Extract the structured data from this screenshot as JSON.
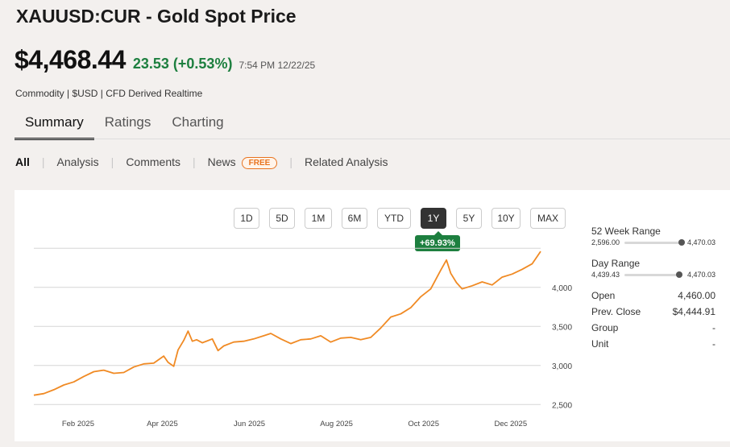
{
  "header": {
    "title": "XAUUSD:CUR - Gold Spot Price",
    "price": "$4,468.44",
    "change": "23.53 (+0.53%)",
    "timestamp": "7:54 PM 12/22/25",
    "meta": "Commodity | $USD | CFD Derived Realtime"
  },
  "tabs": [
    "Summary",
    "Ratings",
    "Charting"
  ],
  "subnav": {
    "all": "All",
    "analysis": "Analysis",
    "comments": "Comments",
    "news": "News",
    "news_badge": "FREE",
    "related": "Related Analysis"
  },
  "range_buttons": [
    "1D",
    "5D",
    "1M",
    "6M",
    "YTD",
    "1Y",
    "5Y",
    "10Y",
    "MAX"
  ],
  "active_range": "1Y",
  "performance": "+69.93%",
  "colors": {
    "line": "#f08a24",
    "positive": "#1d7f3f"
  },
  "side": {
    "week52_label": "52 Week Range",
    "week52_low": "2,596.00",
    "week52_high": "4,470.03",
    "day_label": "Day Range",
    "day_low": "4,439.43",
    "day_high": "4,470.03",
    "open_label": "Open",
    "open_value": "4,460.00",
    "prev_label": "Prev. Close",
    "prev_value": "$4,444.91",
    "group_label": "Group",
    "group_value": "-",
    "unit_label": "Unit",
    "unit_value": "-"
  },
  "chart_data": {
    "type": "line",
    "y_ticks": [
      "4,000",
      "3,500",
      "3,000",
      "2,500"
    ],
    "x_ticks": [
      "Feb 2025",
      "Apr 2025",
      "Jun 2025",
      "Aug 2025",
      "Oct 2025",
      "Dec 2025"
    ],
    "ylim": [
      2400,
      4420
    ],
    "grid": true,
    "series": [
      {
        "x": [
          "2025-01-01",
          "2025-01-08",
          "2025-01-15",
          "2025-01-22",
          "2025-01-29",
          "2025-02-05",
          "2025-02-12",
          "2025-02-19",
          "2025-02-26",
          "2025-03-05",
          "2025-03-12",
          "2025-03-19",
          "2025-03-26",
          "2025-04-02",
          "2025-04-05",
          "2025-04-09",
          "2025-04-12",
          "2025-04-16",
          "2025-04-19",
          "2025-04-22",
          "2025-04-25",
          "2025-04-29",
          "2025-05-06",
          "2025-05-10",
          "2025-05-14",
          "2025-05-21",
          "2025-05-28",
          "2025-06-04",
          "2025-06-11",
          "2025-06-16",
          "2025-06-23",
          "2025-06-30",
          "2025-07-07",
          "2025-07-14",
          "2025-07-21",
          "2025-07-28",
          "2025-08-04",
          "2025-08-11",
          "2025-08-18",
          "2025-08-25",
          "2025-09-01",
          "2025-09-08",
          "2025-09-15",
          "2025-09-22",
          "2025-09-29",
          "2025-10-06",
          "2025-10-13",
          "2025-10-17",
          "2025-10-20",
          "2025-10-24",
          "2025-10-28",
          "2025-11-04",
          "2025-11-11",
          "2025-11-18",
          "2025-11-25",
          "2025-12-02",
          "2025-12-09",
          "2025-12-16",
          "2025-12-22"
        ],
        "values": [
          2620,
          2640,
          2690,
          2750,
          2790,
          2860,
          2920,
          2940,
          2900,
          2910,
          2980,
          3020,
          3030,
          3120,
          3040,
          2990,
          3200,
          3320,
          3440,
          3310,
          3330,
          3290,
          3340,
          3190,
          3250,
          3300,
          3310,
          3340,
          3380,
          3410,
          3340,
          3280,
          3330,
          3340,
          3380,
          3300,
          3350,
          3360,
          3330,
          3360,
          3480,
          3620,
          3660,
          3740,
          3880,
          3980,
          4220,
          4350,
          4180,
          4060,
          3980,
          4020,
          4070,
          4030,
          4130,
          4170,
          4230,
          4300,
          4460
        ]
      }
    ]
  }
}
